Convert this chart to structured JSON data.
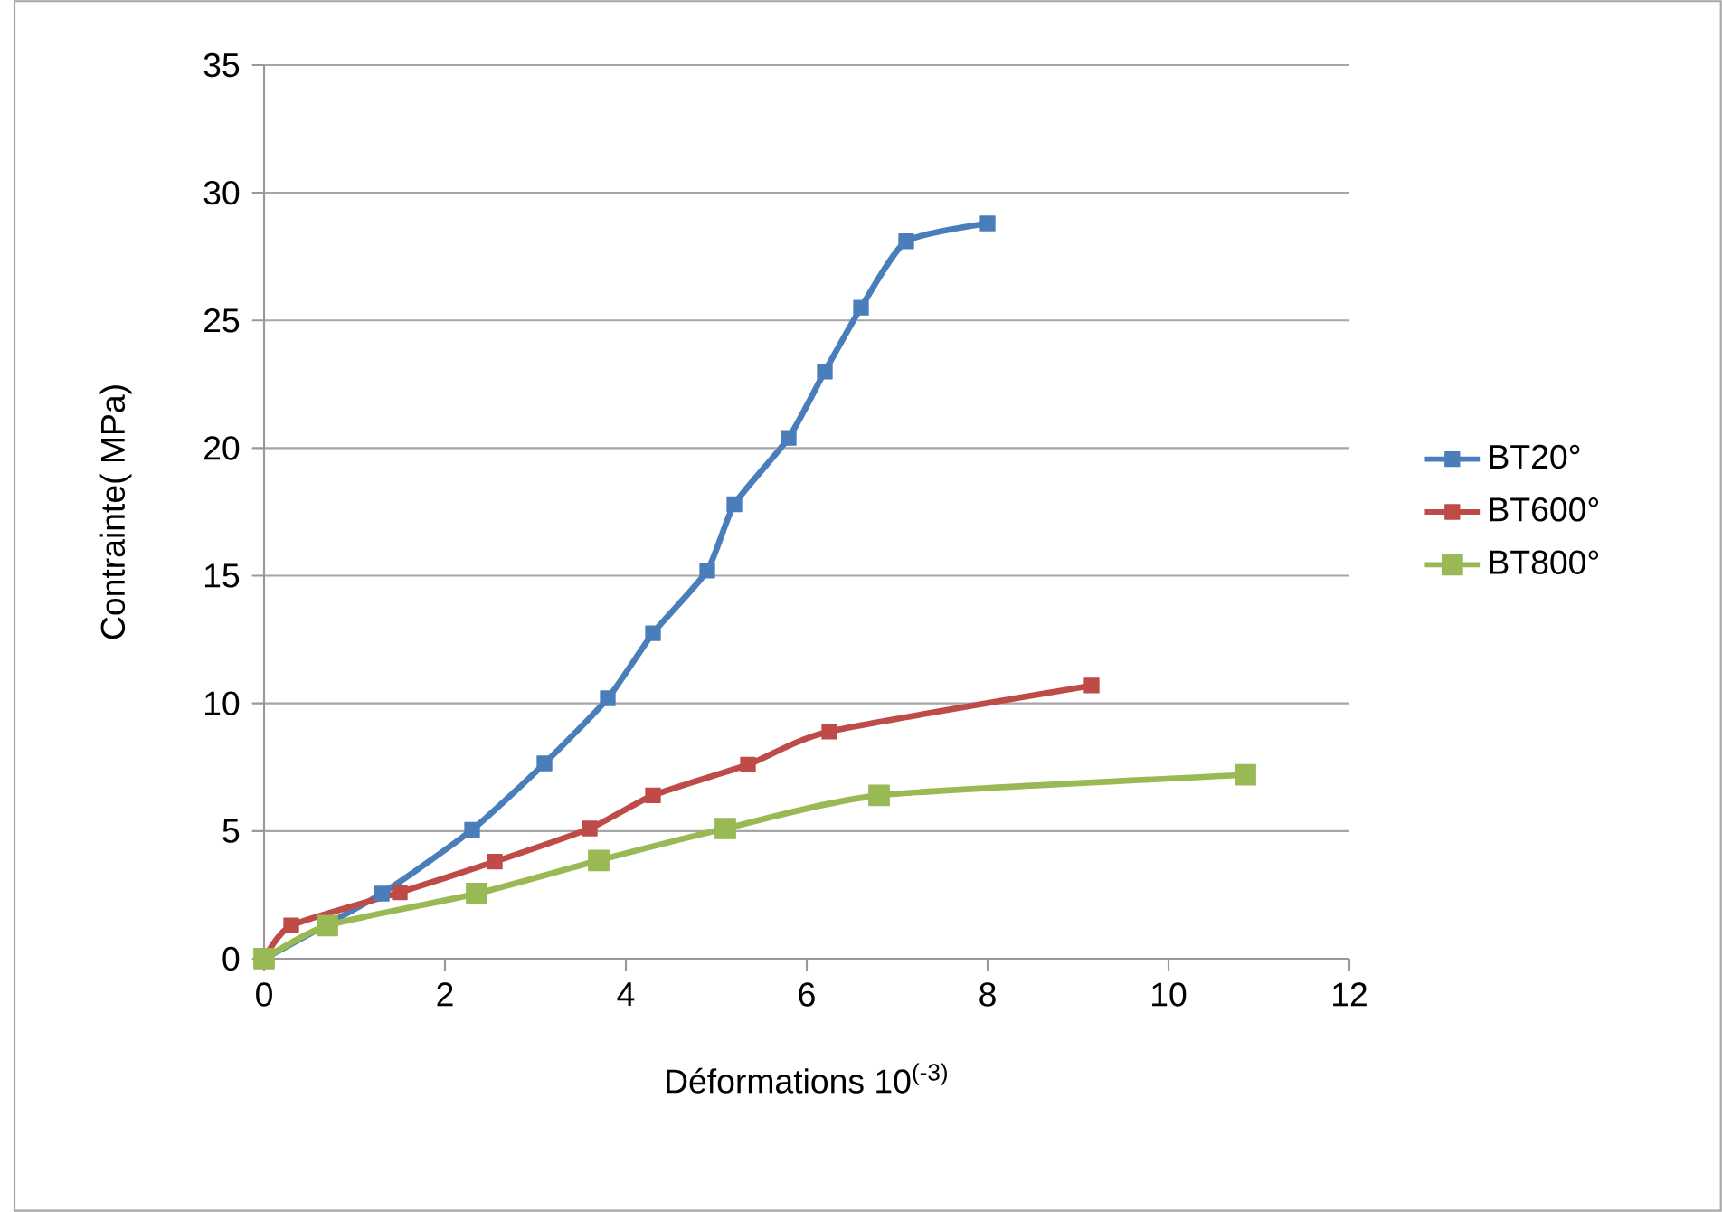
{
  "chart_data": {
    "type": "line",
    "xlabel": "Déformations 10$^{(-3)}$",
    "ylabel": "Contrainte( MPa)",
    "xlim": [
      0,
      12
    ],
    "xticks": [
      0,
      2,
      4,
      6,
      8,
      10,
      12
    ],
    "ylim": [
      0,
      35
    ],
    "yticks": [
      0,
      5,
      10,
      15,
      20,
      25,
      30,
      35
    ],
    "grid": "y",
    "legend": "right",
    "marker": "square",
    "line_style": "solid",
    "series": [
      {
        "name": "BT20°",
        "color": "#4a7ebb",
        "x": [
          0,
          1.3,
          2.3,
          3.1,
          3.8,
          4.3,
          4.9,
          5.2,
          5.8,
          6.2,
          6.6,
          7.1,
          8.0
        ],
        "values": [
          0,
          2.55,
          5.05,
          7.65,
          10.2,
          12.75,
          15.2,
          17.8,
          20.4,
          23.0,
          25.5,
          28.1,
          28.8
        ]
      },
      {
        "name": "BT600°",
        "color": "#be4b48",
        "x": [
          0,
          0.3,
          1.5,
          2.55,
          3.6,
          4.3,
          5.35,
          6.25,
          9.15
        ],
        "values": [
          0,
          1.3,
          2.6,
          3.8,
          5.1,
          6.4,
          7.6,
          8.9,
          10.7
        ]
      },
      {
        "name": "BT800°",
        "color": "#98b954",
        "x": [
          0,
          0.7,
          2.35,
          3.7,
          5.1,
          6.8,
          10.85
        ],
        "values": [
          0,
          1.3,
          2.55,
          3.85,
          5.1,
          6.4,
          7.2
        ]
      }
    ]
  }
}
